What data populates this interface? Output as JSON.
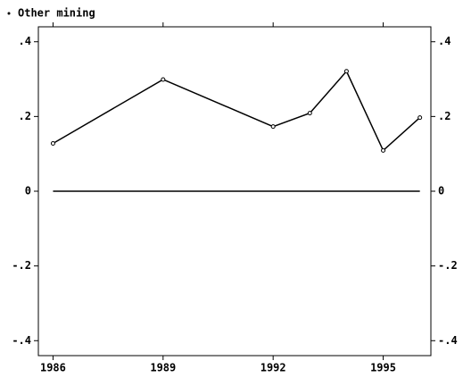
{
  "chart_data": {
    "type": "line",
    "x": [
      1986,
      1989,
      1992,
      1993,
      1994,
      1995,
      1996
    ],
    "series": [
      {
        "name": "Other mining",
        "color": "#000000",
        "values": [
          0.128,
          0.299,
          0.173,
          0.209,
          0.321,
          0.109,
          0.197
        ]
      }
    ],
    "xlim": [
      1985.6,
      1996.3
    ],
    "xticks": [
      1986,
      1989,
      1992,
      1995
    ],
    "ylim": [
      -0.44,
      0.44
    ],
    "yticks": [
      {
        "value": -0.4,
        "label": "-.4"
      },
      {
        "value": -0.2,
        "label": "-.2"
      },
      0,
      {
        "value": 0.2,
        "label": ".2"
      },
      {
        "value": 0.4,
        "label": ".4"
      }
    ],
    "legend": "top-left"
  }
}
